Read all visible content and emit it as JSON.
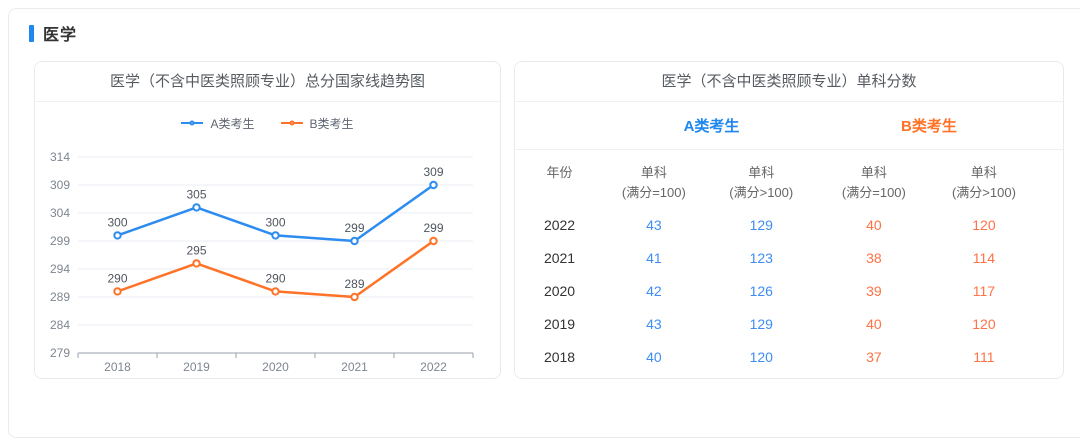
{
  "section": {
    "title": "医学"
  },
  "trend_card": {
    "title": "医学（不含中医类照顾专业）总分国家线趋势图"
  },
  "chart_data": {
    "type": "line",
    "title": "医学（不含中医类照顾专业）总分国家线趋势图",
    "x": [
      "2018",
      "2019",
      "2020",
      "2021",
      "2022"
    ],
    "series": [
      {
        "name": "A类考生",
        "color": "#2d8cf0",
        "values": [
          300,
          305,
          300,
          299,
          309
        ]
      },
      {
        "name": "B类考生",
        "color": "#ff7227",
        "values": [
          290,
          295,
          290,
          289,
          299
        ]
      }
    ],
    "ylim": [
      279,
      314
    ],
    "ytick_step": 5,
    "yticks": [
      279,
      284,
      289,
      294,
      299,
      304,
      309,
      314
    ],
    "grid": true,
    "legend_position": "top",
    "marker": "empty-circle",
    "data_labels": true,
    "axis_color": "#99a1ad",
    "grid_color": "#e9edf4",
    "tick_label_color": "#7e8690",
    "data_label_color": "#4f565e"
  },
  "score_card": {
    "title": "医学（不含中医类照顾专业）单科分数",
    "group_headers": [
      {
        "label": "A类考生",
        "color": "#1e87f0"
      },
      {
        "label": "B类考生",
        "color": "#ff7227"
      }
    ],
    "columns": [
      {
        "line1": "年份",
        "line2": ""
      },
      {
        "line1": "单科",
        "line2": "(满分=100)"
      },
      {
        "line1": "单科",
        "line2": "(满分>100)"
      },
      {
        "line1": "单科",
        "line2": "(满分=100)"
      },
      {
        "line1": "单科",
        "line2": "(满分>100)"
      }
    ],
    "rows": [
      {
        "cells": [
          "2022",
          "43",
          "129",
          "40",
          "120"
        ]
      },
      {
        "cells": [
          "2021",
          "41",
          "123",
          "38",
          "114"
        ]
      },
      {
        "cells": [
          "2020",
          "42",
          "126",
          "39",
          "117"
        ]
      },
      {
        "cells": [
          "2019",
          "43",
          "129",
          "40",
          "120"
        ]
      },
      {
        "cells": [
          "2018",
          "40",
          "120",
          "37",
          "111"
        ]
      }
    ],
    "value_colors": {
      "a": "#3d8df5",
      "b": "#ff7245"
    }
  },
  "colors": {
    "accent_blue": "#1e87f0",
    "accent_orange": "#ff7227"
  }
}
